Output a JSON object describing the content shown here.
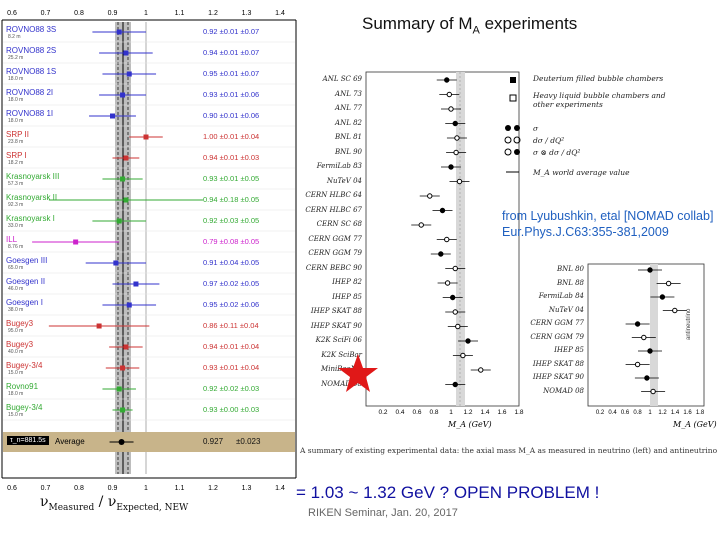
{
  "title": {
    "main": "Summary of M",
    "sub": "A",
    "tail": " experiments"
  },
  "left_panel": {
    "axis_ticks": [
      "0.6",
      "0.7",
      "0.8",
      "0.9",
      "1",
      "1.1",
      "1.2",
      "1.3",
      "1.4"
    ],
    "xlabel": "ν_Measured / ν_Expected, NEW",
    "average_label": "Average",
    "average_value": "0.927",
    "average_err": "±0.023",
    "tau_label": "τ_n=881.5s",
    "experiments": [
      {
        "name": "ROVNO88 3S",
        "dist": "8.2 m",
        "val": "0.92",
        "stat": "±0.01",
        "sys": "±0.07",
        "color": "#3333cc",
        "mean": 0.92
      },
      {
        "name": "ROVNO88 2S",
        "dist": "25.2 m",
        "val": "0.94",
        "stat": "±0.01",
        "sys": "±0.07",
        "color": "#3333cc",
        "mean": 0.94
      },
      {
        "name": "ROVNO88 1S",
        "dist": "18.0 m",
        "val": "0.95",
        "stat": "±0.01",
        "sys": "±0.07",
        "color": "#3333cc",
        "mean": 0.95
      },
      {
        "name": "ROVNO88 2I",
        "dist": "18.0 m",
        "val": "0.93",
        "stat": "±0.01",
        "sys": "±0.06",
        "color": "#3333cc",
        "mean": 0.93
      },
      {
        "name": "ROVNO88 1I",
        "dist": "18.0 m",
        "val": "0.90",
        "stat": "±0.01",
        "sys": "±0.06",
        "color": "#3333cc",
        "mean": 0.9
      },
      {
        "name": "SRP II",
        "dist": "23.8 m",
        "val": "1.00",
        "stat": "±0.01",
        "sys": "±0.04",
        "color": "#cc3333",
        "mean": 1.0
      },
      {
        "name": "SRP I",
        "dist": "18.2 m",
        "val": "0.94",
        "stat": "±0.01",
        "sys": "±0.03",
        "color": "#cc3333",
        "mean": 0.94
      },
      {
        "name": "Krasnoyarsk III",
        "dist": "57.3 m",
        "val": "0.93",
        "stat": "±0.01",
        "sys": "±0.05",
        "color": "#33aa33",
        "mean": 0.93
      },
      {
        "name": "Krasnoyarsk II",
        "dist": "92.3 m",
        "val": "0.94",
        "stat": "±0.18",
        "sys": "±0.05",
        "color": "#33aa33",
        "mean": 0.94
      },
      {
        "name": "Krasnoyarsk I",
        "dist": "33.0 m",
        "val": "0.92",
        "stat": "±0.03",
        "sys": "±0.05",
        "color": "#33aa33",
        "mean": 0.92
      },
      {
        "name": "ILL",
        "dist": "8.76 m",
        "val": "0.79",
        "stat": "±0.08",
        "sys": "±0.05",
        "color": "#cc22cc",
        "mean": 0.79
      },
      {
        "name": "Goesgen III",
        "dist": "65.0 m",
        "val": "0.91",
        "stat": "±0.04",
        "sys": "±0.05",
        "color": "#3333cc",
        "mean": 0.91
      },
      {
        "name": "Goesgen II",
        "dist": "46.0 m",
        "val": "0.97",
        "stat": "±0.02",
        "sys": "±0.05",
        "color": "#3333cc",
        "mean": 0.97
      },
      {
        "name": "Goesgen I",
        "dist": "38.0 m",
        "val": "0.95",
        "stat": "±0.02",
        "sys": "±0.06",
        "color": "#3333cc",
        "mean": 0.95
      },
      {
        "name": "Bugey3",
        "dist": "95.0 m",
        "val": "0.86",
        "stat": "±0.11",
        "sys": "±0.04",
        "color": "#cc3333",
        "mean": 0.86
      },
      {
        "name": "Bugey3",
        "dist": "40.0 m",
        "val": "0.94",
        "stat": "±0.01",
        "sys": "±0.04",
        "color": "#cc3333",
        "mean": 0.94
      },
      {
        "name": "Bugey-3/4",
        "dist": "15.0 m",
        "val": "0.93",
        "stat": "±0.01",
        "sys": "±0.04",
        "color": "#cc3333",
        "mean": 0.93
      },
      {
        "name": "Rovno91",
        "dist": "18.0 m",
        "val": "0.92",
        "stat": "±0.02",
        "sys": "±0.03",
        "color": "#33aa33",
        "mean": 0.92
      },
      {
        "name": "Bugey-3/4",
        "dist": "15.0 m",
        "val": "0.93",
        "stat": "±0.00",
        "sys": "±0.03",
        "color": "#33aa33",
        "mean": 0.93
      }
    ]
  },
  "right_panel": {
    "left_rows": [
      "ANL SC 69",
      "ANL 73",
      "ANL 77",
      "ANL 82",
      "BNL 81",
      "BNL 90",
      "FermiLab 83",
      "NuTeV 04",
      "CERN HLBC 64",
      "CERN HLBC 67",
      "CERN SC 68",
      "CERN GGM 77",
      "CERN GGM 79",
      "CERN BEBC 90",
      "IHEP 82",
      "IHEP 85",
      "IHEP SKAT 88",
      "IHEP SKAT 90",
      "K2K SciFi 06",
      "K2K SciBar",
      "MiniBooNE",
      "NOMAD 08"
    ],
    "right_rows": [
      "BNL 80",
      "BNL 88",
      "FermiLab 84",
      "NuTeV 04",
      "CERN GGM 77",
      "CERN GGM 79",
      "IHEP 85",
      "IHEP SKAT 88",
      "IHEP SKAT 90",
      "NOMAD 08"
    ],
    "legend": [
      "Deuterium filled bubble chambers",
      "Heavy liquid bubble chambers and other experiments",
      "σ",
      "dσ / dQ²",
      "σ ⊗ dσ / dQ²",
      "M_A world average value"
    ],
    "x_ticks": [
      "0.2",
      "0.4",
      "0.6",
      "0.8",
      "1",
      "1.2",
      "1.4",
      "1.6",
      "1.8"
    ],
    "xlabel_left": "M_A (GeV)",
    "xlabel_right": "M_A (GeV)",
    "right_rotated": "antineutrino",
    "note_line1": "from Lyubushkin, etal [NOMAD collab]",
    "note_line2": "Eur.Phys.J.C63:355-381,2009",
    "caption": "A summary of existing experimental data: the axial mass M_A as measured in neutrino (left) and antineutrino"
  },
  "open_problem": "=  1.03 ~ 1.32 GeV ?   OPEN PROBLEM !",
  "footer": "RIKEN Seminar, Jan. 20, 2017",
  "colors": {
    "band": "#bdbdbd",
    "average_bg": "#c8b48a",
    "note": "#2060c0",
    "star": "#e01818"
  }
}
